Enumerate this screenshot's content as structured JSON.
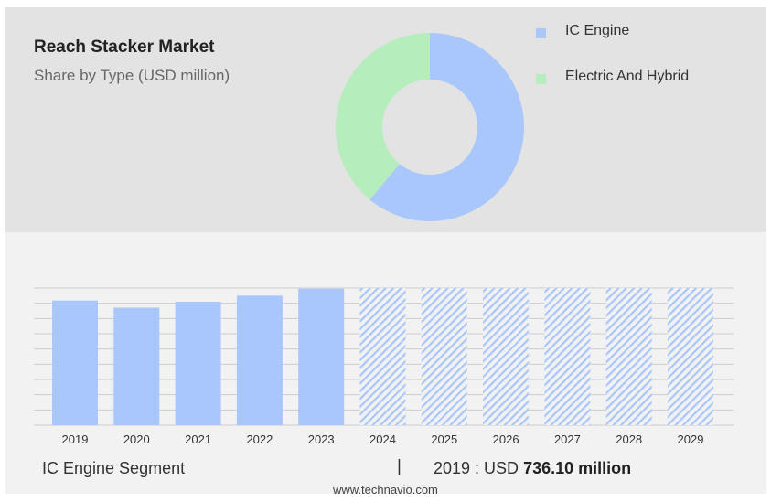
{
  "header": {
    "title": "Reach Stacker Market",
    "subtitle": "Share by Type (USD million)"
  },
  "colors": {
    "ic_engine": "#a9c7fb",
    "electric_hybrid": "#b5eebc",
    "hatch": "#a9c7fb",
    "gridline": "#cccccc"
  },
  "chart_data": [
    {
      "type": "pie",
      "style": "donut",
      "legend_position": "top-right",
      "slices": [
        {
          "name": "IC Engine",
          "value": 61,
          "color": "#a9c7fb"
        },
        {
          "name": "Electric And Hybrid",
          "value": 39,
          "color": "#b5eebc"
        }
      ]
    },
    {
      "type": "bar",
      "categories": [
        "2019",
        "2020",
        "2021",
        "2022",
        "2023",
        "2024",
        "2025",
        "2026",
        "2027",
        "2028",
        "2029"
      ],
      "values": [
        736.1,
        694,
        729,
        765,
        806,
        810,
        810,
        810,
        810,
        810,
        810
      ],
      "forecast_from": "2024",
      "ylim": [
        0,
        810
      ],
      "grid": true
    }
  ],
  "footer": {
    "segment": "IC Engine Segment",
    "divider": "|",
    "value_prefix": "2019 : USD ",
    "value_bold": "736.10 million",
    "site": "www.technavio.com"
  }
}
